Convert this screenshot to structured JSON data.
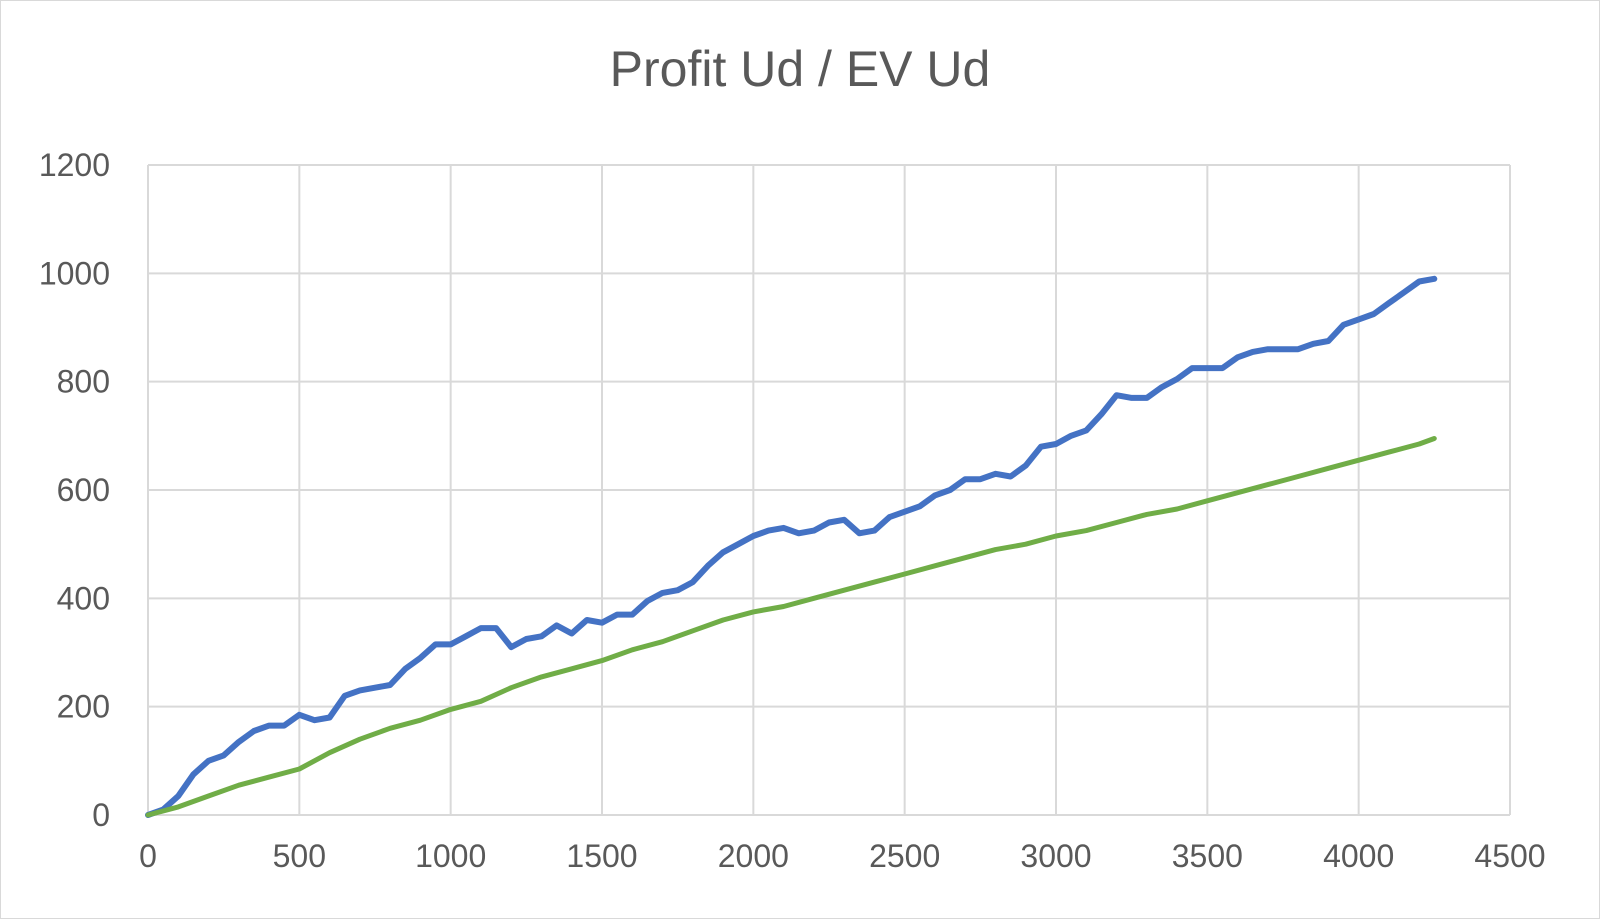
{
  "chart_data": {
    "type": "line",
    "title": "Profit Ud / EV Ud",
    "xlabel": "",
    "ylabel": "",
    "xlim": [
      0,
      4500
    ],
    "ylim": [
      0,
      1200
    ],
    "x_ticks": [
      "0",
      "500",
      "1000",
      "1500",
      "2000",
      "2500",
      "3000",
      "3500",
      "4000",
      "4500"
    ],
    "y_ticks": [
      "0",
      "200",
      "400",
      "600",
      "800",
      "1000",
      "1200"
    ],
    "grid": true,
    "legend": "none",
    "series": [
      {
        "color": "#4472c4",
        "x": [
          0,
          50,
          100,
          150,
          200,
          250,
          300,
          350,
          400,
          450,
          500,
          550,
          600,
          650,
          700,
          750,
          800,
          850,
          900,
          950,
          1000,
          1050,
          1100,
          1150,
          1200,
          1250,
          1300,
          1350,
          1400,
          1450,
          1500,
          1550,
          1600,
          1650,
          1700,
          1750,
          1800,
          1850,
          1900,
          1950,
          2000,
          2050,
          2100,
          2150,
          2200,
          2250,
          2300,
          2350,
          2400,
          2450,
          2500,
          2550,
          2600,
          2650,
          2700,
          2750,
          2800,
          2850,
          2900,
          2950,
          3000,
          3050,
          3100,
          3150,
          3200,
          3250,
          3300,
          3350,
          3400,
          3450,
          3500,
          3550,
          3600,
          3650,
          3700,
          3750,
          3800,
          3850,
          3900,
          3950,
          4000,
          4050,
          4100,
          4150,
          4200,
          4250
        ],
        "y": [
          0,
          10,
          35,
          75,
          100,
          110,
          135,
          155,
          165,
          165,
          185,
          175,
          180,
          220,
          230,
          235,
          240,
          270,
          290,
          315,
          315,
          330,
          345,
          345,
          310,
          325,
          330,
          350,
          335,
          360,
          355,
          370,
          370,
          395,
          410,
          415,
          430,
          460,
          485,
          500,
          515,
          525,
          530,
          520,
          525,
          540,
          545,
          520,
          525,
          550,
          560,
          570,
          590,
          600,
          620,
          620,
          630,
          625,
          645,
          680,
          685,
          700,
          710,
          740,
          775,
          770,
          770,
          790,
          805,
          825,
          825,
          825,
          845,
          855,
          860,
          860,
          860,
          870,
          875,
          905,
          915,
          925,
          945,
          965,
          985,
          990
        ]
      },
      {
        "color": "#70ad47",
        "x": [
          0,
          100,
          200,
          300,
          400,
          500,
          600,
          700,
          800,
          900,
          1000,
          1100,
          1200,
          1300,
          1400,
          1500,
          1600,
          1700,
          1800,
          1900,
          2000,
          2100,
          2200,
          2300,
          2400,
          2500,
          2600,
          2700,
          2800,
          2900,
          3000,
          3100,
          3200,
          3300,
          3400,
          3500,
          3600,
          3700,
          3800,
          3900,
          4000,
          4100,
          4200,
          4250
        ],
        "y": [
          0,
          15,
          35,
          55,
          70,
          85,
          115,
          140,
          160,
          175,
          195,
          210,
          235,
          255,
          270,
          285,
          305,
          320,
          340,
          360,
          375,
          385,
          400,
          415,
          430,
          445,
          460,
          475,
          490,
          500,
          515,
          525,
          540,
          555,
          565,
          580,
          595,
          610,
          625,
          640,
          655,
          670,
          685,
          695
        ]
      }
    ]
  }
}
